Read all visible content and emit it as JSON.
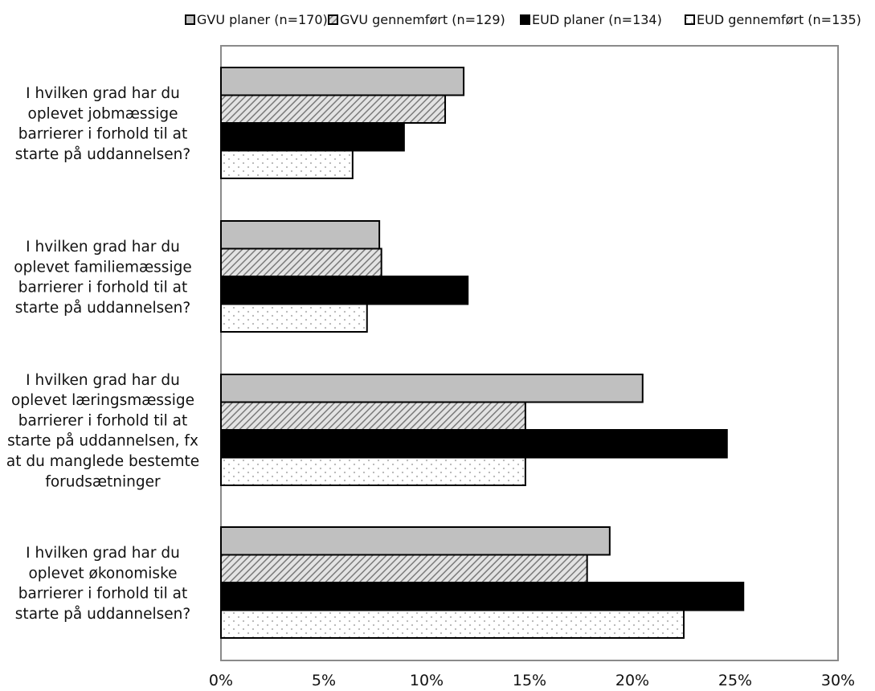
{
  "chart_data": {
    "type": "bar",
    "orientation": "horizontal",
    "title": "",
    "xlabel": "",
    "ylabel": "",
    "xlim": [
      0,
      30
    ],
    "x_ticks": [
      0,
      5,
      10,
      15,
      20,
      25,
      30
    ],
    "tick_suffix": "%",
    "grid": false,
    "legend_position": "top-right",
    "categories": [
      "I hvilken grad har du oplevet jobmæssige barrierer i forhold til at starte på uddannelsen?",
      "I hvilken grad har du oplevet familiemæssige barrierer i forhold til at starte på uddannelsen?",
      "I hvilken grad har du oplevet læringsmæssige barrierer i forhold til at starte på uddannelsen, fx at du manglede bestemte forudsætninger",
      "I hvilken grad har du oplevet økonomiske barrierer i forhold til at starte på uddannelsen?"
    ],
    "category_lines": [
      [
        "I hvilken grad har du",
        "oplevet jobmæssige",
        "barrierer i forhold til at",
        "starte på uddannelsen?"
      ],
      [
        "I hvilken grad har du",
        "oplevet familiemæssige",
        "barrierer i forhold til at",
        "starte på uddannelsen?"
      ],
      [
        "I hvilken grad har du",
        "oplevet læringsmæssige",
        "barrierer i forhold til at",
        "starte på uddannelsen, fx",
        "at du manglede bestemte",
        "forudsætninger"
      ],
      [
        "I hvilken grad har du",
        "oplevet økonomiske",
        "barrierer i forhold til at",
        "starte på uddannelsen?"
      ]
    ],
    "series": [
      {
        "name": "GVU planer (n=170)",
        "pattern": "solid-gray",
        "values": [
          11.8,
          7.7,
          20.5,
          18.9
        ]
      },
      {
        "name": "GVU gennemført (n=129)",
        "pattern": "diagonal-hatch",
        "values": [
          10.9,
          7.8,
          14.8,
          17.8
        ]
      },
      {
        "name": "EUD planer (n=134)",
        "pattern": "solid-black",
        "values": [
          8.9,
          12.0,
          24.6,
          25.4
        ]
      },
      {
        "name": "EUD gennemført (n=135)",
        "pattern": "dots",
        "values": [
          6.4,
          7.1,
          14.8,
          22.5
        ]
      }
    ],
    "colors": {
      "axis": "#8a8a8a",
      "bar_outline": "#000000",
      "gray_fill": "#c0c0c0",
      "black_fill": "#000000",
      "hatch_bg": "#e3e3e3",
      "hatch_line": "#7a7a7a",
      "dot_bg": "#ffffff",
      "dot_fill": "#b5b5b5"
    }
  }
}
